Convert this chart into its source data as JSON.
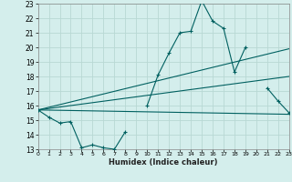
{
  "title": "",
  "xlabel": "Humidex (Indice chaleur)",
  "bg_color": "#d4eeec",
  "grid_color": "#b8d8d4",
  "line_color": "#006060",
  "xmin": 0,
  "xmax": 23,
  "ymin": 13,
  "ymax": 23,
  "yticks": [
    13,
    14,
    15,
    16,
    17,
    18,
    19,
    20,
    21,
    22,
    23
  ],
  "xticks": [
    0,
    1,
    2,
    3,
    4,
    5,
    6,
    7,
    8,
    9,
    10,
    11,
    12,
    13,
    14,
    15,
    16,
    17,
    18,
    19,
    20,
    21,
    22,
    23
  ],
  "series1_x": [
    0,
    1,
    2,
    3,
    4,
    5,
    6,
    7,
    8,
    9,
    10,
    11,
    12,
    13,
    14,
    15,
    16,
    17,
    18,
    19,
    20,
    21,
    22,
    23
  ],
  "series1_y": [
    15.7,
    15.2,
    14.8,
    14.9,
    13.1,
    13.3,
    13.1,
    13.0,
    14.2,
    null,
    16.0,
    18.1,
    19.6,
    21.0,
    21.1,
    23.2,
    21.8,
    21.3,
    18.3,
    20.0,
    null,
    17.2,
    16.3,
    15.5
  ],
  "trend1_x": [
    0,
    23
  ],
  "trend1_y": [
    15.7,
    15.4
  ],
  "trend2_x": [
    0,
    23
  ],
  "trend2_y": [
    15.7,
    18.0
  ],
  "trend3_x": [
    0,
    23
  ],
  "trend3_y": [
    15.7,
    19.9
  ]
}
